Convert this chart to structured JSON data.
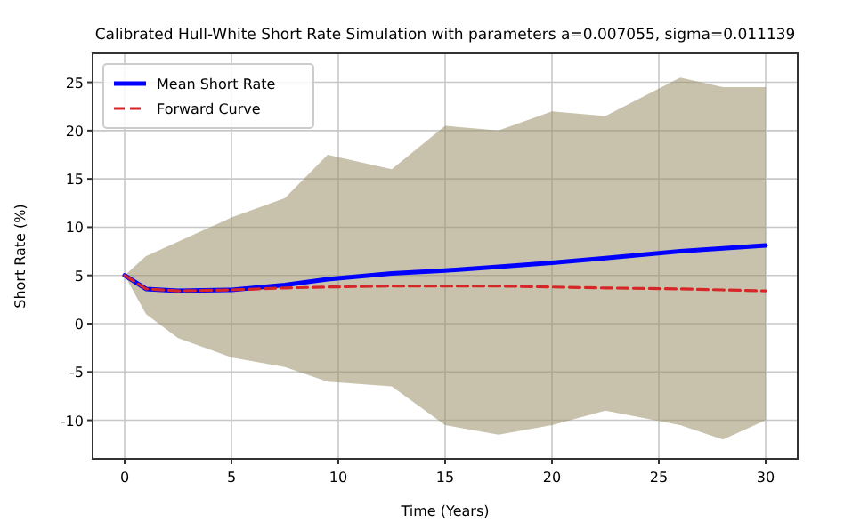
{
  "chart_data": {
    "type": "line",
    "title": "Calibrated Hull-White Short Rate Simulation with parameters a=0.007055, sigma=0.011139",
    "xlabel": "Time (Years)",
    "ylabel": "Short Rate (%)",
    "x": [
      0,
      1,
      2.5,
      5,
      7.5,
      9.5,
      12.5,
      15,
      17.5,
      20,
      22.5,
      26,
      28,
      30
    ],
    "series": [
      {
        "name": "Mean Short Rate",
        "color": "#0000ff",
        "values": [
          5,
          3.6,
          3.4,
          3.5,
          4,
          4.6,
          5.2,
          5.5,
          5.9,
          6.3,
          6.8,
          7.5,
          7.8,
          8.1
        ],
        "lower": [
          5,
          1,
          -1.5,
          -3.5,
          -4.5,
          -6,
          -6.5,
          -10.5,
          -11.5,
          -10.5,
          -9,
          -10.5,
          -12,
          -10
        ],
        "upper": [
          5,
          7,
          8.5,
          11,
          13,
          17.5,
          16,
          20.5,
          20,
          22,
          21.5,
          25.5,
          24.5,
          24.5
        ]
      },
      {
        "name": "Forward Curve",
        "color": "#d62728",
        "line_style": "dashed",
        "values": [
          5,
          3.6,
          3.4,
          3.5,
          3.7,
          3.8,
          3.9,
          3.9,
          3.9,
          3.8,
          3.7,
          3.6,
          3.5,
          3.4
        ]
      }
    ],
    "xlim": [
      -1.5,
      31.5
    ],
    "xticks": [
      0,
      5,
      10,
      15,
      20,
      25,
      30
    ],
    "ylim": [
      -14,
      28
    ],
    "yticks": [
      -10,
      -5,
      0,
      5,
      10,
      15,
      20,
      25
    ],
    "grid": true,
    "legend": "top left"
  }
}
